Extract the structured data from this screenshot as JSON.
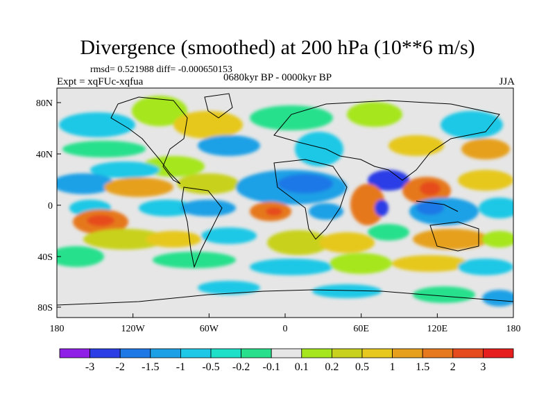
{
  "header": {
    "title": "Divergence (smoothed) at 200 hPa (10**6 m/s)",
    "stats": "rmsd= 0.521988 diff= -0.000650153",
    "experiment": "Expt = xqFUc-xqfua",
    "period": "0680kyr BP - 0000kyr BP",
    "season": "JJA"
  },
  "axes": {
    "lon_ticks": [
      "180",
      "120W",
      "60W",
      "0",
      "60E",
      "120E",
      "180"
    ],
    "lat_ticks": [
      "80N",
      "40N",
      "0",
      "40S",
      "80S"
    ]
  },
  "colorbar": {
    "labels": [
      "-3",
      "-2",
      "-1.5",
      "-1",
      "-0.5",
      "-0.2",
      "-0.1",
      "0.1",
      "0.2",
      "0.5",
      "1",
      "1.5",
      "2",
      "3"
    ],
    "colors": [
      "#8f1ee6",
      "#2b3ee6",
      "#1e78e6",
      "#1ea0e6",
      "#1ec8e6",
      "#1ee0c8",
      "#28e08c",
      "#e6e6e6",
      "#a6e61e",
      "#c8d21e",
      "#e6c81e",
      "#e6a01e",
      "#e6781e",
      "#e64b1e",
      "#e61e1e"
    ]
  }
}
